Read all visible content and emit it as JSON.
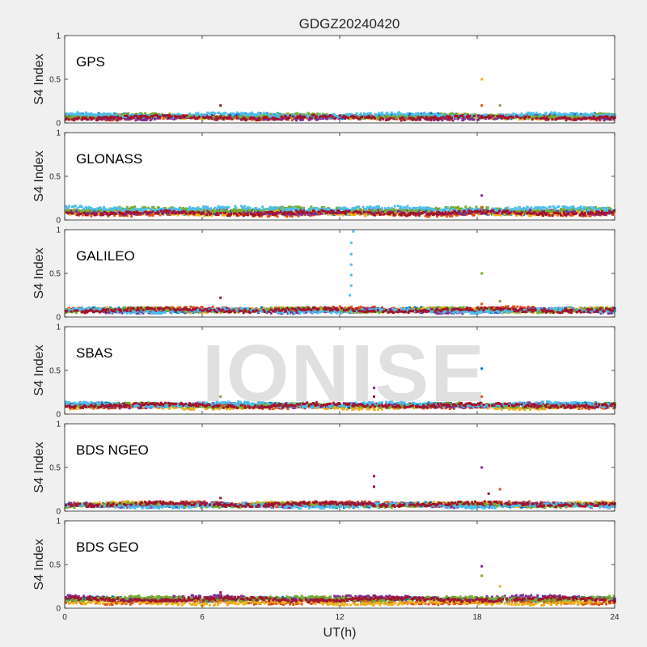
{
  "figure": {
    "title": "GDGZ20240420",
    "watermark": "IONISE",
    "xlabel": "UT(h)",
    "ylabel": "S4 Index",
    "x_ticks": [
      "0",
      "6",
      "12",
      "18",
      "24"
    ],
    "y_ticks": [
      "0",
      "0.5",
      "1"
    ]
  },
  "chart_data": [
    {
      "type": "scatter",
      "panel": "GPS",
      "x": [
        0,
        24
      ],
      "ylim": [
        0,
        1
      ],
      "baseline_s4": 0.07,
      "series": [
        {
          "color": "#0072BD",
          "level": 0.08
        },
        {
          "color": "#D95319",
          "level": 0.06
        },
        {
          "color": "#EDB120",
          "level": 0.07
        },
        {
          "color": "#7E2F8E",
          "level": 0.06
        },
        {
          "color": "#77AC30",
          "level": 0.08
        },
        {
          "color": "#4DBEEE",
          "level": 0.09
        },
        {
          "color": "#A2142F",
          "level": 0.06
        }
      ],
      "spikes": [
        {
          "x": 6.8,
          "y": 0.2,
          "color": "#A2142F"
        },
        {
          "x": 18.2,
          "y": 0.5,
          "color": "#EDB120"
        },
        {
          "x": 18.2,
          "y": 0.2,
          "color": "#D95319"
        },
        {
          "x": 19.0,
          "y": 0.2,
          "color": "#77AC30"
        }
      ]
    },
    {
      "type": "scatter",
      "panel": "GLONASS",
      "x": [
        0,
        24
      ],
      "ylim": [
        0,
        1
      ],
      "baseline_s4": 0.08,
      "series": [
        {
          "color": "#0072BD",
          "level": 0.09
        },
        {
          "color": "#D95319",
          "level": 0.07
        },
        {
          "color": "#EDB120",
          "level": 0.08
        },
        {
          "color": "#7E2F8E",
          "level": 0.09
        },
        {
          "color": "#77AC30",
          "level": 0.12
        },
        {
          "color": "#4DBEEE",
          "level": 0.13
        },
        {
          "color": "#A2142F",
          "level": 0.08
        }
      ],
      "spikes": [
        {
          "x": 18.2,
          "y": 0.28,
          "color": "#7E2F8E"
        },
        {
          "x": 18.2,
          "y": 0.14,
          "color": "#D95319"
        }
      ]
    },
    {
      "type": "scatter",
      "panel": "GALILEO",
      "x": [
        0,
        24
      ],
      "ylim": [
        0,
        1
      ],
      "baseline_s4": 0.07,
      "series": [
        {
          "color": "#0072BD",
          "level": 0.08
        },
        {
          "color": "#D95319",
          "level": 0.09
        },
        {
          "color": "#EDB120",
          "level": 0.08
        },
        {
          "color": "#7E2F8E",
          "level": 0.07
        },
        {
          "color": "#77AC30",
          "level": 0.08
        },
        {
          "color": "#4DBEEE",
          "level": 0.07
        },
        {
          "color": "#A2142F",
          "level": 0.08
        }
      ],
      "spikes": [
        {
          "x": 12.6,
          "y": 0.98,
          "color": "#4DBEEE"
        },
        {
          "x": 12.5,
          "y": 0.85,
          "color": "#4DBEEE"
        },
        {
          "x": 12.5,
          "y": 0.72,
          "color": "#4DBEEE"
        },
        {
          "x": 12.5,
          "y": 0.6,
          "color": "#4DBEEE"
        },
        {
          "x": 12.5,
          "y": 0.48,
          "color": "#4DBEEE"
        },
        {
          "x": 12.5,
          "y": 0.36,
          "color": "#4DBEEE"
        },
        {
          "x": 12.45,
          "y": 0.25,
          "color": "#4DBEEE"
        },
        {
          "x": 18.2,
          "y": 0.5,
          "color": "#77AC30"
        },
        {
          "x": 6.8,
          "y": 0.22,
          "color": "#A2142F"
        },
        {
          "x": 18.2,
          "y": 0.15,
          "color": "#D95319"
        },
        {
          "x": 19.0,
          "y": 0.18,
          "color": "#77AC30"
        }
      ]
    },
    {
      "type": "scatter",
      "panel": "SBAS",
      "x": [
        0,
        24
      ],
      "ylim": [
        0,
        1
      ],
      "baseline_s4": 0.1,
      "series": [
        {
          "color": "#0072BD",
          "level": 0.1
        },
        {
          "color": "#D95319",
          "level": 0.09
        },
        {
          "color": "#EDB120",
          "level": 0.08
        },
        {
          "color": "#7E2F8E",
          "level": 0.1
        },
        {
          "color": "#77AC30",
          "level": 0.1
        },
        {
          "color": "#4DBEEE",
          "level": 0.11
        },
        {
          "color": "#A2142F",
          "level": 0.1
        }
      ],
      "spikes": [
        {
          "x": 18.2,
          "y": 0.52,
          "color": "#0072BD"
        },
        {
          "x": 13.5,
          "y": 0.3,
          "color": "#7E2F8E"
        },
        {
          "x": 13.5,
          "y": 0.2,
          "color": "#A2142F"
        },
        {
          "x": 6.8,
          "y": 0.2,
          "color": "#77AC30"
        },
        {
          "x": 18.2,
          "y": 0.2,
          "color": "#D95319"
        }
      ]
    },
    {
      "type": "scatter",
      "panel": "BDS NGEO",
      "x": [
        0,
        24
      ],
      "ylim": [
        0,
        1
      ],
      "baseline_s4": 0.07,
      "series": [
        {
          "color": "#0072BD",
          "level": 0.07
        },
        {
          "color": "#D95319",
          "level": 0.08
        },
        {
          "color": "#EDB120",
          "level": 0.08
        },
        {
          "color": "#7E2F8E",
          "level": 0.07
        },
        {
          "color": "#77AC30",
          "level": 0.07
        },
        {
          "color": "#4DBEEE",
          "level": 0.06
        },
        {
          "color": "#A2142F",
          "level": 0.08
        }
      ],
      "spikes": [
        {
          "x": 13.5,
          "y": 0.4,
          "color": "#A2142F"
        },
        {
          "x": 13.5,
          "y": 0.28,
          "color": "#A2142F"
        },
        {
          "x": 18.2,
          "y": 0.5,
          "color": "#7E2F8E"
        },
        {
          "x": 19.0,
          "y": 0.25,
          "color": "#D95319"
        },
        {
          "x": 18.5,
          "y": 0.2,
          "color": "#A2142F"
        },
        {
          "x": 6.8,
          "y": 0.15,
          "color": "#A2142F"
        }
      ]
    },
    {
      "type": "scatter",
      "panel": "BDS GEO",
      "x": [
        0,
        24
      ],
      "ylim": [
        0,
        1
      ],
      "baseline_s4": 0.1,
      "series": [
        {
          "color": "#0072BD",
          "level": 0.1
        },
        {
          "color": "#D95319",
          "level": 0.07
        },
        {
          "color": "#EDB120",
          "level": 0.06
        },
        {
          "color": "#7E2F8E",
          "level": 0.12
        },
        {
          "color": "#77AC30",
          "level": 0.11
        },
        {
          "color": "#A2142F",
          "level": 0.1
        }
      ],
      "spikes": [
        {
          "x": 18.2,
          "y": 0.48,
          "color": "#7E2F8E"
        },
        {
          "x": 18.2,
          "y": 0.37,
          "color": "#77AC30"
        },
        {
          "x": 19.0,
          "y": 0.25,
          "color": "#EDB120"
        },
        {
          "x": 6.8,
          "y": 0.18,
          "color": "#A2142F"
        }
      ]
    }
  ]
}
